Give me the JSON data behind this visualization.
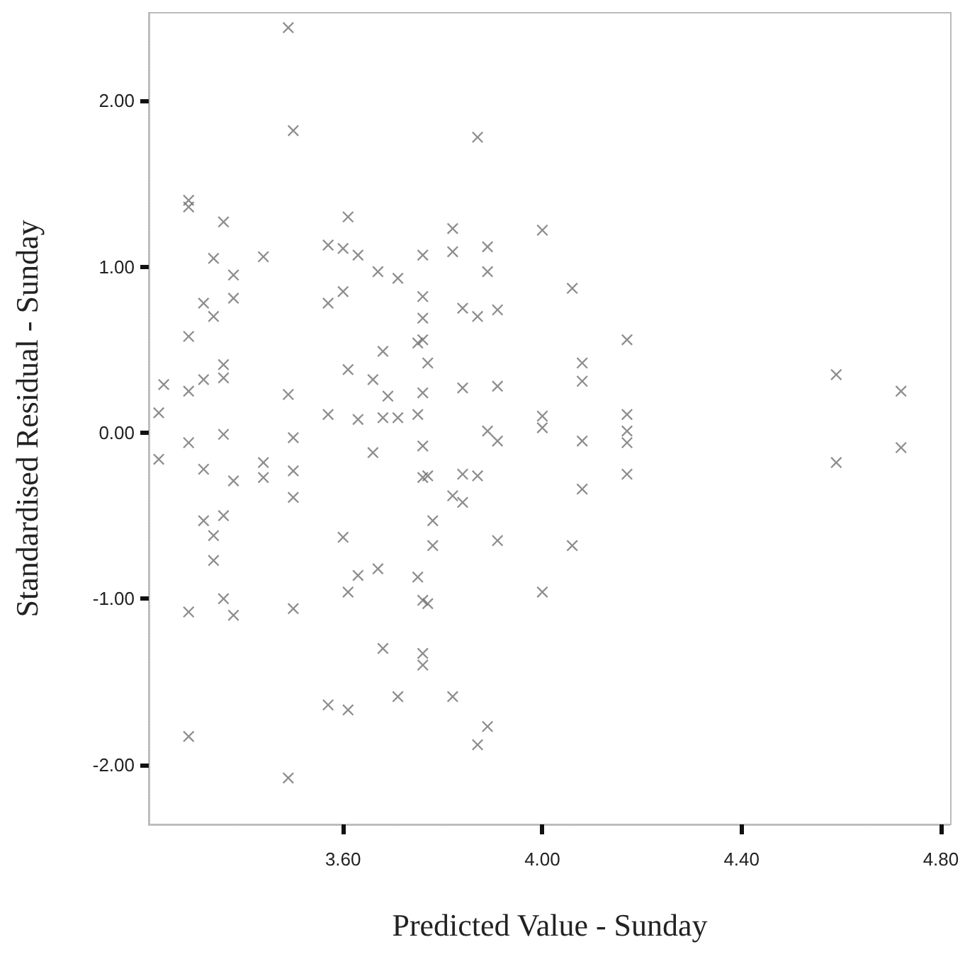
{
  "chart_data": {
    "type": "scatter",
    "xlabel": "Predicted Value - Sunday",
    "ylabel": "Standardised Residual - Sunday",
    "marker": "cross",
    "grid": false,
    "xlim": [
      3.21,
      4.82
    ],
    "ylim": [
      -2.36,
      2.53
    ],
    "xticks": [
      {
        "value": 3.6,
        "label": "3.60"
      },
      {
        "value": 4.0,
        "label": "4.00"
      },
      {
        "value": 4.4,
        "label": "4.40"
      },
      {
        "value": 4.8,
        "label": "4.80"
      }
    ],
    "yticks": [
      {
        "value": -2,
        "label": "-2.00"
      },
      {
        "value": -1,
        "label": "-1.00"
      },
      {
        "value": 0,
        "label": "0.00"
      },
      {
        "value": 1,
        "label": "1.00"
      },
      {
        "value": 2,
        "label": "2.00"
      }
    ],
    "series": [
      {
        "color": "#707070",
        "x": [
          3.49,
          3.5,
          3.29,
          3.29,
          3.36,
          3.61,
          3.34,
          3.44,
          3.57,
          3.6,
          3.63,
          3.67,
          3.71,
          3.76,
          3.38,
          3.38,
          3.32,
          3.34,
          3.6,
          3.57,
          3.29,
          3.68,
          3.75,
          3.36,
          3.36,
          3.24,
          3.32,
          3.29,
          3.61,
          3.66,
          3.69,
          3.49,
          3.23,
          3.76,
          3.76,
          3.76,
          3.77,
          3.57,
          3.63,
          3.68,
          3.71,
          3.75,
          3.29,
          3.36,
          3.23,
          3.32,
          3.38,
          3.44,
          3.44,
          3.5,
          3.5,
          3.5,
          3.66,
          3.76,
          3.76,
          3.32,
          3.36,
          3.34,
          3.34,
          3.6,
          3.63,
          3.67,
          3.75,
          3.61,
          3.76,
          3.29,
          3.36,
          3.38,
          3.5,
          3.68,
          3.76,
          3.76,
          3.57,
          3.61,
          3.71,
          3.29,
          3.49,
          3.87,
          3.82,
          3.82,
          3.89,
          3.89,
          4.0,
          4.06,
          3.84,
          3.87,
          3.91,
          4.17,
          3.76,
          3.84,
          3.91,
          4.08,
          4.08,
          4.0,
          4.17,
          4.0,
          4.17,
          4.17,
          4.17,
          3.89,
          3.91,
          4.08,
          3.77,
          3.84,
          3.87,
          3.82,
          3.84,
          4.08,
          3.78,
          3.78,
          3.91,
          4.06,
          3.77,
          4.0,
          3.82,
          3.89,
          3.87,
          4.59,
          4.72,
          4.72,
          4.59
        ],
        "values": [
          2.44,
          1.82,
          1.4,
          1.36,
          1.27,
          1.3,
          1.05,
          1.06,
          1.13,
          1.11,
          1.07,
          0.97,
          0.93,
          1.07,
          0.95,
          0.81,
          0.78,
          0.7,
          0.85,
          0.78,
          0.58,
          0.49,
          0.54,
          0.41,
          0.33,
          0.29,
          0.32,
          0.25,
          0.38,
          0.32,
          0.22,
          0.23,
          0.12,
          0.82,
          0.69,
          0.56,
          0.42,
          0.11,
          0.08,
          0.09,
          0.09,
          0.11,
          -0.06,
          -0.01,
          -0.16,
          -0.22,
          -0.29,
          -0.18,
          -0.27,
          -0.03,
          -0.23,
          -0.39,
          -0.12,
          -0.08,
          -0.27,
          -0.53,
          -0.5,
          -0.62,
          -0.77,
          -0.63,
          -0.86,
          -0.82,
          -0.87,
          -0.96,
          -1.01,
          -1.08,
          -1.0,
          -1.1,
          -1.06,
          -1.3,
          -1.33,
          -1.4,
          -1.64,
          -1.67,
          -1.59,
          -1.83,
          -2.08,
          1.78,
          1.23,
          1.09,
          1.12,
          0.97,
          1.22,
          0.87,
          0.75,
          0.7,
          0.74,
          0.56,
          0.24,
          0.27,
          0.28,
          0.42,
          0.31,
          0.1,
          0.11,
          0.03,
          0.01,
          -0.06,
          -0.25,
          0.01,
          -0.05,
          -0.05,
          -0.26,
          -0.25,
          -0.26,
          -0.38,
          -0.42,
          -0.34,
          -0.53,
          -0.68,
          -0.65,
          -0.68,
          -1.03,
          -0.96,
          -1.59,
          -1.77,
          -1.88,
          0.35,
          0.25,
          -0.09,
          -0.18
        ]
      }
    ]
  }
}
